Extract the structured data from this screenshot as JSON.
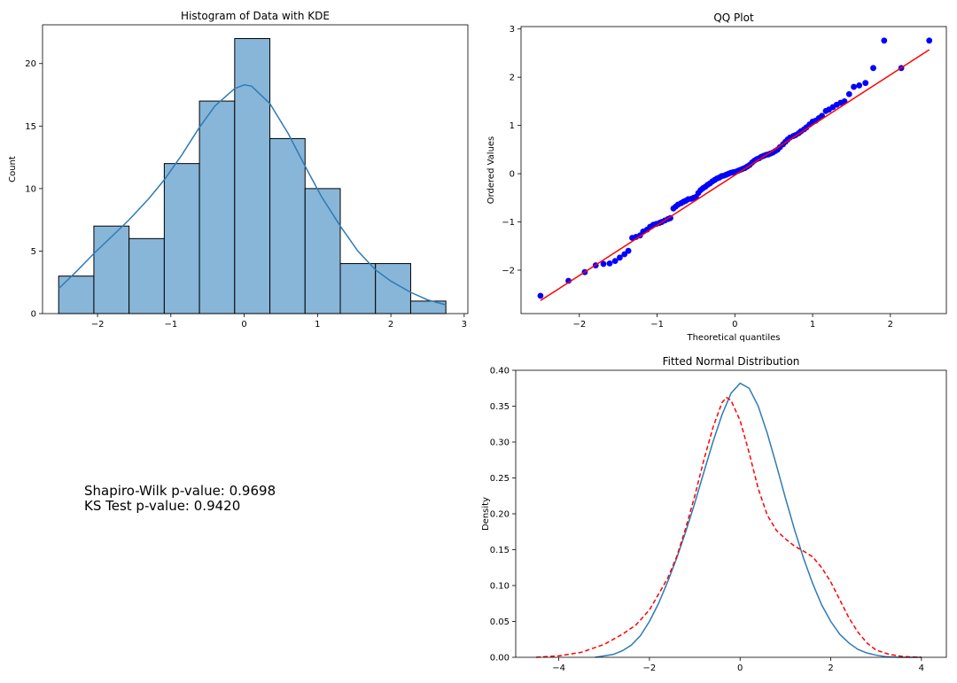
{
  "chart_data": [
    {
      "type": "bar",
      "title": "Histogram of Data with KDE",
      "xlabel": "",
      "ylabel": "Count",
      "xlim": [
        -2.75,
        3.05
      ],
      "ylim": [
        0,
        23.1
      ],
      "xticks": [
        -2,
        -1,
        0,
        1,
        2,
        3
      ],
      "xtick_labels": [
        "−2",
        "−1",
        "0",
        "1",
        "2",
        "3"
      ],
      "yticks": [
        0,
        5,
        10,
        15,
        20
      ],
      "ytick_labels": [
        "0",
        "5",
        "10",
        "15",
        "20"
      ],
      "bin_edges": [
        -2.53,
        -2.05,
        -1.57,
        -1.09,
        -0.61,
        -0.13,
        0.35,
        0.83,
        1.31,
        1.79,
        2.27,
        2.75
      ],
      "counts": [
        3,
        7,
        6,
        12,
        17,
        22,
        14,
        10,
        4,
        4,
        1
      ],
      "bar_color": "#88b6d8",
      "edge_color": "#000000",
      "kde": {
        "color": "#2f7bb5",
        "x": [
          -2.53,
          -2.3,
          -2.05,
          -1.8,
          -1.57,
          -1.3,
          -1.09,
          -0.85,
          -0.61,
          -0.4,
          -0.13,
          0.0,
          0.1,
          0.35,
          0.6,
          0.83,
          1.05,
          1.31,
          1.55,
          1.79,
          2.0,
          2.27,
          2.5,
          2.75
        ],
        "y": [
          2.0,
          3.3,
          4.8,
          6.2,
          7.5,
          9.2,
          10.7,
          12.7,
          14.9,
          16.6,
          18.0,
          18.3,
          18.2,
          16.8,
          14.4,
          11.8,
          9.4,
          7.0,
          5.0,
          3.5,
          2.6,
          1.7,
          1.1,
          0.7
        ]
      }
    },
    {
      "type": "scatter",
      "title": "QQ Plot",
      "xlabel": "Theoretical quantiles",
      "ylabel": "Ordered Values",
      "xlim": [
        -2.75,
        2.72
      ],
      "ylim": [
        -2.9,
        3.05
      ],
      "xticks": [
        -2,
        -1,
        0,
        1,
        2
      ],
      "xtick_labels": [
        "−2",
        "−1",
        "0",
        "1",
        "2"
      ],
      "yticks": [
        -2,
        -1,
        0,
        1,
        2,
        3
      ],
      "ytick_labels": [
        "−2",
        "−1",
        "0",
        "1",
        "2",
        "3"
      ],
      "point_color": "#0000ff",
      "line_color": "#ff0000",
      "fit_line": {
        "x": [
          -2.5,
          2.5
        ],
        "y": [
          -2.63,
          2.57
        ]
      },
      "points": {
        "x": [
          -2.5,
          -2.14,
          -1.93,
          -1.79,
          -1.69,
          -1.61,
          -1.54,
          -1.48,
          -1.42,
          -1.37,
          -1.32,
          -1.27,
          -1.22,
          -1.18,
          -1.13,
          -1.09,
          -1.05,
          -1.01,
          -0.97,
          -0.94,
          -0.9,
          -0.86,
          -0.83,
          -0.79,
          -0.76,
          -0.73,
          -0.69,
          -0.66,
          -0.63,
          -0.6,
          -0.56,
          -0.53,
          -0.5,
          -0.47,
          -0.44,
          -0.41,
          -0.38,
          -0.35,
          -0.32,
          -0.29,
          -0.26,
          -0.23,
          -0.2,
          -0.17,
          -0.14,
          -0.11,
          -0.08,
          -0.05,
          -0.02,
          0.01,
          0.04,
          0.07,
          0.1,
          0.13,
          0.16,
          0.19,
          0.22,
          0.25,
          0.28,
          0.31,
          0.34,
          0.37,
          0.4,
          0.43,
          0.46,
          0.49,
          0.52,
          0.55,
          0.58,
          0.62,
          0.65,
          0.68,
          0.71,
          0.75,
          0.78,
          0.82,
          0.85,
          0.89,
          0.92,
          0.96,
          1.0,
          1.04,
          1.08,
          1.12,
          1.17,
          1.21,
          1.26,
          1.31,
          1.36,
          1.41,
          1.47,
          1.53,
          1.6,
          1.68,
          1.78,
          1.92,
          2.14,
          2.5
        ],
        "y": [
          -2.53,
          -2.22,
          -2.04,
          -1.9,
          -1.87,
          -1.86,
          -1.81,
          -1.74,
          -1.67,
          -1.6,
          -1.33,
          -1.31,
          -1.28,
          -1.2,
          -1.16,
          -1.1,
          -1.06,
          -1.04,
          -1.02,
          -1.0,
          -0.97,
          -0.94,
          -0.92,
          -0.72,
          -0.68,
          -0.64,
          -0.61,
          -0.58,
          -0.56,
          -0.53,
          -0.52,
          -0.5,
          -0.48,
          -0.4,
          -0.34,
          -0.3,
          -0.27,
          -0.23,
          -0.2,
          -0.16,
          -0.13,
          -0.1,
          -0.08,
          -0.05,
          -0.04,
          -0.02,
          0.0,
          0.02,
          0.03,
          0.04,
          0.06,
          0.08,
          0.1,
          0.12,
          0.15,
          0.18,
          0.23,
          0.27,
          0.3,
          0.32,
          0.35,
          0.37,
          0.39,
          0.4,
          0.42,
          0.44,
          0.47,
          0.5,
          0.55,
          0.61,
          0.66,
          0.71,
          0.75,
          0.78,
          0.8,
          0.84,
          0.88,
          0.92,
          0.96,
          1.02,
          1.08,
          1.1,
          1.15,
          1.2,
          1.3,
          1.33,
          1.38,
          1.43,
          1.47,
          1.5,
          1.65,
          1.8,
          1.83,
          1.88,
          2.19,
          2.76,
          2.19,
          2.76
        ]
      }
    },
    {
      "type": "line",
      "title": "Fitted Normal Distribution",
      "xlabel": "",
      "ylabel": "Density",
      "xlim": [
        -4.95,
        4.55
      ],
      "ylim": [
        0,
        0.4
      ],
      "xticks": [
        -4,
        -2,
        0,
        2,
        4
      ],
      "xtick_labels": [
        "−4",
        "−2",
        "0",
        "2",
        "4"
      ],
      "yticks": [
        0,
        0.05,
        0.1,
        0.15,
        0.2,
        0.25,
        0.3,
        0.35,
        0.4
      ],
      "ytick_labels": [
        "0.00",
        "0.05",
        "0.10",
        "0.15",
        "0.20",
        "0.25",
        "0.30",
        "0.35",
        "0.40"
      ],
      "series": [
        {
          "color": "#2f7bb5",
          "style": "solid",
          "x": [
            -3.2,
            -3.0,
            -2.8,
            -2.6,
            -2.4,
            -2.2,
            -2.0,
            -1.8,
            -1.6,
            -1.4,
            -1.2,
            -1.0,
            -0.8,
            -0.6,
            -0.4,
            -0.2,
            0.0,
            0.2,
            0.4,
            0.6,
            0.8,
            1.0,
            1.2,
            1.4,
            1.6,
            1.8,
            2.0,
            2.2,
            2.4,
            2.6,
            2.8,
            3.0,
            3.2,
            3.5,
            4.0
          ],
          "y": [
            0.0,
            0.002,
            0.004,
            0.009,
            0.017,
            0.03,
            0.05,
            0.075,
            0.105,
            0.138,
            0.175,
            0.215,
            0.258,
            0.3,
            0.338,
            0.368,
            0.382,
            0.375,
            0.35,
            0.312,
            0.268,
            0.222,
            0.178,
            0.138,
            0.103,
            0.073,
            0.05,
            0.032,
            0.02,
            0.011,
            0.006,
            0.003,
            0.001,
            0.0,
            0.0
          ]
        },
        {
          "color": "#ff0000",
          "style": "dashed",
          "x": [
            -4.5,
            -4.0,
            -3.5,
            -3.0,
            -2.6,
            -2.3,
            -2.0,
            -1.8,
            -1.6,
            -1.4,
            -1.2,
            -1.0,
            -0.8,
            -0.6,
            -0.4,
            -0.3,
            -0.2,
            0.0,
            0.2,
            0.4,
            0.6,
            0.8,
            1.0,
            1.2,
            1.4,
            1.6,
            1.8,
            2.0,
            2.2,
            2.4,
            2.6,
            2.8,
            3.0,
            3.3,
            3.6,
            4.0
          ],
          "y": [
            0.0,
            0.002,
            0.007,
            0.018,
            0.032,
            0.045,
            0.066,
            0.088,
            0.11,
            0.14,
            0.18,
            0.225,
            0.275,
            0.32,
            0.355,
            0.362,
            0.358,
            0.33,
            0.285,
            0.235,
            0.198,
            0.177,
            0.165,
            0.155,
            0.148,
            0.14,
            0.125,
            0.105,
            0.08,
            0.055,
            0.035,
            0.02,
            0.01,
            0.004,
            0.001,
            0.0
          ]
        }
      ]
    }
  ],
  "stats": {
    "shapiro_line": "Shapiro-Wilk p-value: 0.9698",
    "ks_line": "KS Test p-value: 0.9420"
  }
}
